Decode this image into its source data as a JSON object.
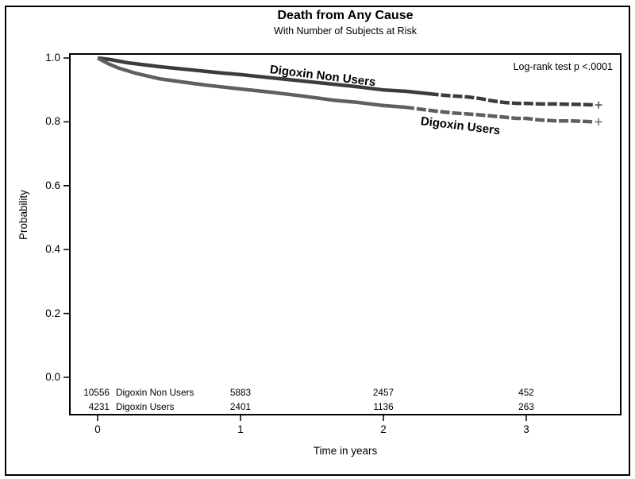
{
  "figure": {
    "title": "Death from Any Cause",
    "subtitle": "With Number of Subjects at Risk",
    "annotation": "Log-rank test p <.0001"
  },
  "chart_data": {
    "type": "line",
    "title": "Death from Any Cause",
    "subtitle": "With Number of Subjects at Risk",
    "xlabel": "Time in years",
    "ylabel": "Probability",
    "xlim": [
      0,
      3.7
    ],
    "ylim": [
      0.0,
      1.0
    ],
    "xticks": [
      0,
      1,
      2,
      3
    ],
    "yticks": [
      1.0,
      0.8,
      0.6,
      0.4,
      0.2,
      0.0
    ],
    "grid": false,
    "annotation": "Log-rank test p <.0001",
    "series": [
      {
        "name": "Digoxin Non Users",
        "color": "#3c3c3c",
        "dash_tail_from_t": 2.32,
        "censored_end": true,
        "points": [
          [
            0,
            1.0
          ],
          [
            0.09,
            0.995
          ],
          [
            0.21,
            0.985
          ],
          [
            0.43,
            0.973
          ],
          [
            0.65,
            0.963
          ],
          [
            0.87,
            0.953
          ],
          [
            1.0,
            0.948
          ],
          [
            1.21,
            0.938
          ],
          [
            1.43,
            0.928
          ],
          [
            1.65,
            0.918
          ],
          [
            1.82,
            0.91
          ],
          [
            2.0,
            0.9
          ],
          [
            2.15,
            0.896
          ],
          [
            2.32,
            0.888
          ],
          [
            2.43,
            0.883
          ],
          [
            2.59,
            0.878
          ],
          [
            2.68,
            0.873
          ],
          [
            2.76,
            0.866
          ],
          [
            2.84,
            0.861
          ],
          [
            2.93,
            0.858
          ],
          [
            3.0,
            0.858
          ],
          [
            3.09,
            0.856
          ],
          [
            3.21,
            0.856
          ],
          [
            3.43,
            0.854
          ],
          [
            3.47,
            0.853
          ]
        ]
      },
      {
        "name": "Digoxin Users",
        "color": "#5f5f5f",
        "dash_tail_from_t": 2.15,
        "censored_end": true,
        "points": [
          [
            0,
            1.0
          ],
          [
            0.07,
            0.983
          ],
          [
            0.15,
            0.968
          ],
          [
            0.26,
            0.953
          ],
          [
            0.43,
            0.935
          ],
          [
            0.59,
            0.925
          ],
          [
            0.76,
            0.915
          ],
          [
            1.0,
            0.903
          ],
          [
            1.21,
            0.893
          ],
          [
            1.43,
            0.881
          ],
          [
            1.65,
            0.868
          ],
          [
            1.82,
            0.861
          ],
          [
            2.0,
            0.851
          ],
          [
            2.15,
            0.846
          ],
          [
            2.32,
            0.836
          ],
          [
            2.48,
            0.828
          ],
          [
            2.65,
            0.823
          ],
          [
            2.82,
            0.816
          ],
          [
            2.93,
            0.811
          ],
          [
            3.0,
            0.811
          ],
          [
            3.09,
            0.806
          ],
          [
            3.21,
            0.803
          ],
          [
            3.32,
            0.803
          ],
          [
            3.43,
            0.801
          ],
          [
            3.47,
            0.8
          ]
        ]
      }
    ],
    "at_risk": {
      "time_points": [
        0,
        1,
        2,
        3
      ],
      "rows": [
        {
          "label": "Digoxin Non Users",
          "counts": [
            "10556",
            "5883",
            "2457",
            "452"
          ]
        },
        {
          "label": "Digoxin Users",
          "counts": [
            "4231",
            "2401",
            "1136",
            "263"
          ]
        }
      ]
    }
  }
}
